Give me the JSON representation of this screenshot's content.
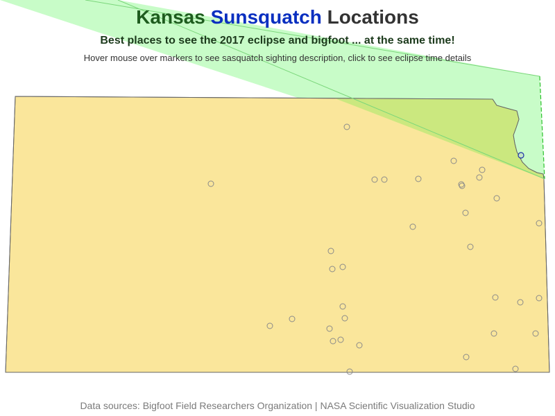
{
  "title": {
    "part1": "Kansas ",
    "part2": "Sunsquatch",
    "part3": " Locations",
    "color1": "#1e5c1e",
    "color2": "#0a2fc0",
    "color3": "#333333"
  },
  "subtitle": {
    "text": "Best places to see the 2017 eclipse and bigfoot ... at the same time!",
    "color": "#1c3a1c"
  },
  "hint": {
    "text": "Hover mouse over markers to see sasquatch sighting description, click to see eclipse time details",
    "color": "#333333"
  },
  "footer": {
    "part1": "Data sources: Bigfoot Field Researchers Organization",
    "separator": " | ",
    "part2": "NASA Scientific Visualization Studio",
    "color": "#7a7a7a"
  },
  "colors": {
    "state_fill": "#fae69b",
    "state_stroke": "#666666",
    "eclipse_fill": "#c8fcc8",
    "eclipse_overlap": "#cbe87f",
    "eclipse_stroke": "#2cc02c",
    "marker_stroke": "#8a8a8a",
    "marker_highlight": "#1b2fa8",
    "marker_highlight_fill": "#c4e6c4"
  },
  "markers_count": 36,
  "highlighted_marker_index": 0
}
